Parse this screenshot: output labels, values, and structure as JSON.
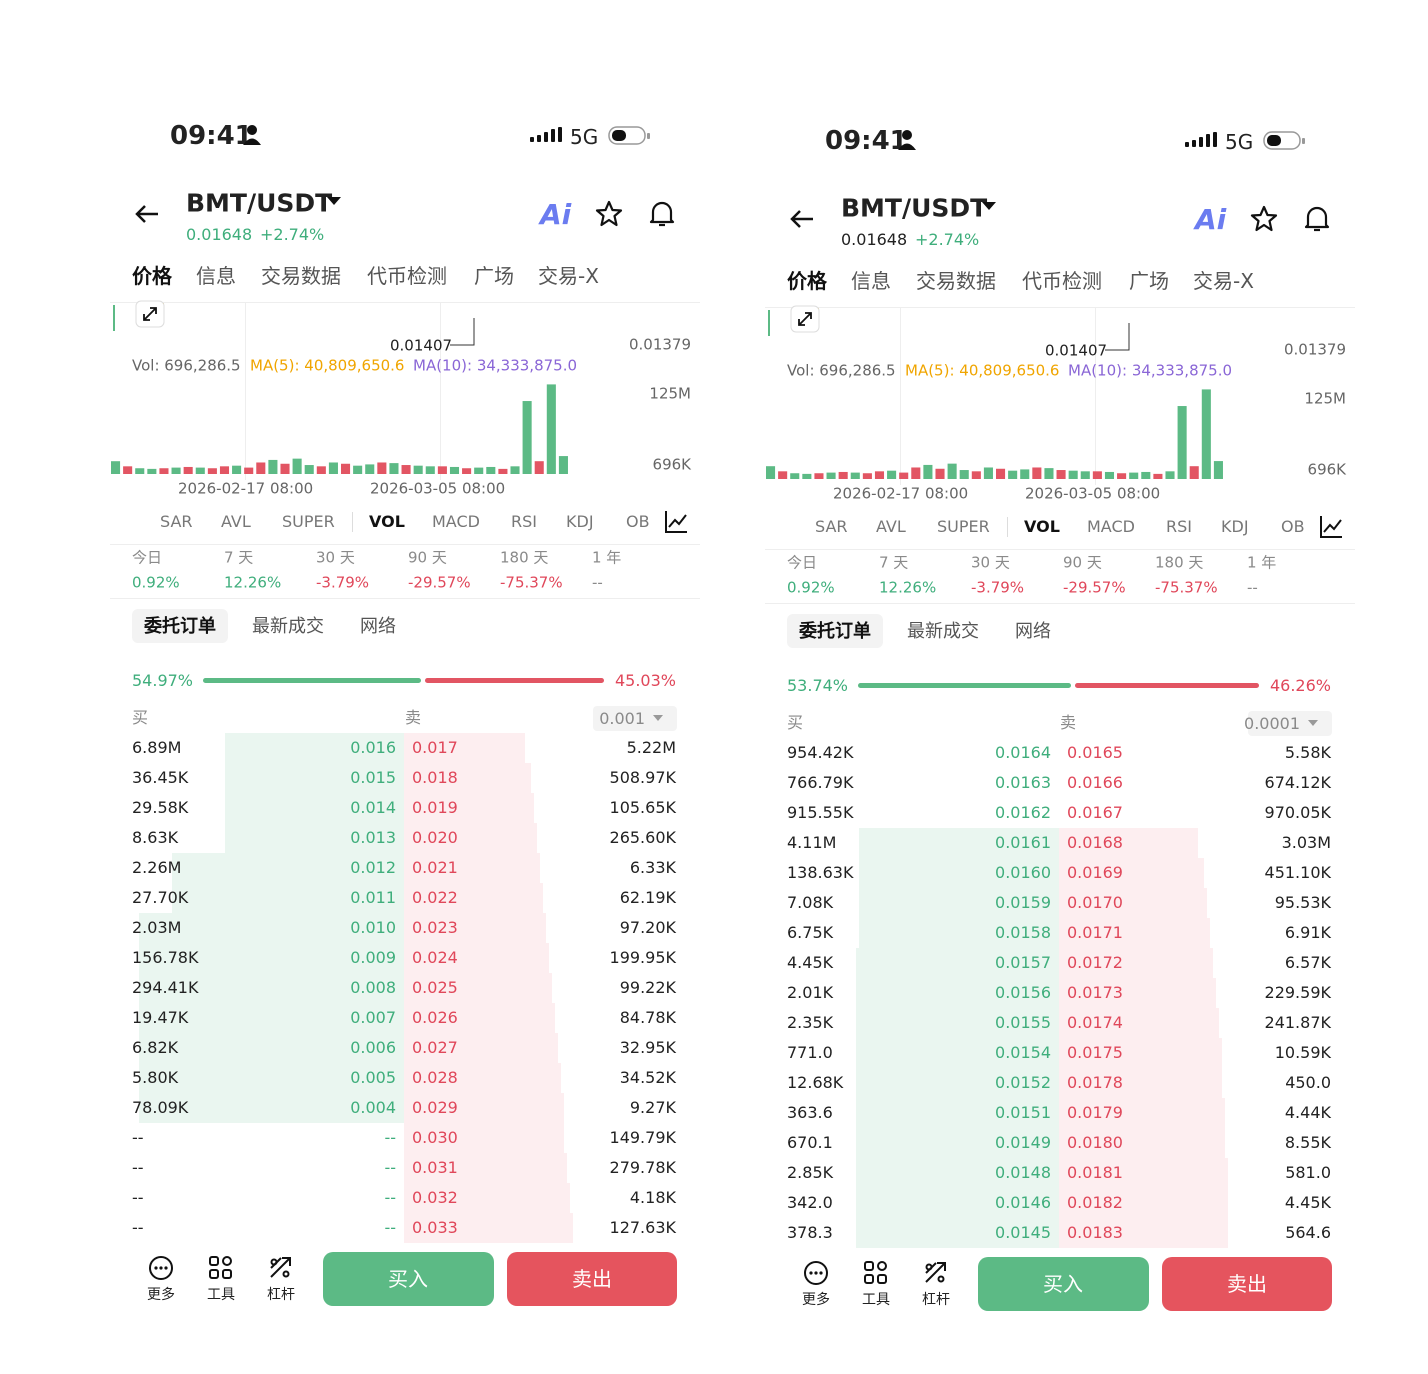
{
  "screens": [
    {
      "status": {
        "time": "09:41",
        "network": "5G"
      },
      "header": {
        "pair": "BMT/USDT",
        "price": "0.01648",
        "change": "+2.74%",
        "ai": "Ai",
        "price_color": "#3fae7c"
      },
      "tabs": [
        "价格",
        "信息",
        "交易数据",
        "代币检测",
        "广场",
        "交易-X"
      ],
      "chart": {
        "price_labels": [
          "0.01407",
          "0.01379"
        ],
        "vol": "Vol: 696,286.5",
        "ma5": "MA(5): 40,809,650.6",
        "ma10": "MA(10): 34,333,875.0",
        "vol_ticks": [
          {
            "value": 125,
            "label": "125M"
          },
          {
            "value": 0.696,
            "label": "696K"
          }
        ],
        "volume": [
          20,
          12,
          9,
          8,
          9,
          10,
          11,
          10,
          9,
          12,
          13,
          10,
          18,
          22,
          16,
          24,
          14,
          12,
          18,
          16,
          13,
          15,
          18,
          17,
          14,
          13,
          12,
          12,
          11,
          9,
          10,
          11,
          8,
          12,
          114,
          20,
          140,
          28
        ],
        "volume_colors": [
          "#5cba85",
          "#e25563",
          "#5cba85",
          "#5cba85",
          "#e25563",
          "#5cba85",
          "#e25563",
          "#5cba85",
          "#e25563",
          "#e25563",
          "#5cba85",
          "#e25563",
          "#e25563",
          "#5cba85",
          "#e25563",
          "#5cba85",
          "#5cba85",
          "#e25563",
          "#5cba85",
          "#e25563",
          "#5cba85",
          "#5cba85",
          "#e25563",
          "#5cba85",
          "#e25563",
          "#5cba85",
          "#5cba85",
          "#e25563",
          "#5cba85",
          "#e25563",
          "#5cba85",
          "#5cba85",
          "#e25563",
          "#5cba85",
          "#5cba85",
          "#e25563",
          "#5cba85",
          "#5cba85"
        ],
        "dates": [
          "2026-02-17 08:00",
          "2026-03-05 08:00"
        ]
      },
      "indicators": [
        "SAR",
        "AVL",
        "SUPER",
        "VOL",
        "MACD",
        "RSI",
        "KDJ",
        "OB"
      ],
      "periods": [
        {
          "label": "今日",
          "value": "0.92%"
        },
        {
          "label": "7 天",
          "value": "12.26%"
        },
        {
          "label": "30 天",
          "value": "-3.79%"
        },
        {
          "label": "90 天",
          "value": "-29.57%"
        },
        {
          "label": "180 天",
          "value": "-75.37%"
        },
        {
          "label": "1 年",
          "value": "--"
        }
      ],
      "order_tabs": [
        "委托订单",
        "最新成交",
        "网络"
      ],
      "order_book": {
        "buy_ratio": {
          "value": 54.97,
          "label": "54.97%"
        },
        "sell_ratio": {
          "value": 45.03,
          "label": "45.03%"
        },
        "buy_header": "买",
        "sell_header": "卖",
        "precision": "0.001",
        "rows": [
          [
            "6.89M",
            "0.016",
            "0.017",
            "5.22M"
          ],
          [
            "36.45K",
            "0.015",
            "0.018",
            "508.97K"
          ],
          [
            "29.58K",
            "0.014",
            "0.019",
            "105.65K"
          ],
          [
            "8.63K",
            "0.013",
            "0.020",
            "265.60K"
          ],
          [
            "2.26M",
            "0.012",
            "0.021",
            "6.33K"
          ],
          [
            "27.70K",
            "0.011",
            "0.022",
            "62.19K"
          ],
          [
            "2.03M",
            "0.010",
            "0.023",
            "97.20K"
          ],
          [
            "156.78K",
            "0.009",
            "0.024",
            "199.95K"
          ],
          [
            "294.41K",
            "0.008",
            "0.025",
            "99.22K"
          ],
          [
            "19.47K",
            "0.007",
            "0.026",
            "84.78K"
          ],
          [
            "6.82K",
            "0.006",
            "0.027",
            "32.95K"
          ],
          [
            "5.80K",
            "0.005",
            "0.028",
            "34.52K"
          ],
          [
            "78.09K",
            "0.004",
            "0.029",
            "9.27K"
          ],
          [
            "--",
            "--",
            "0.030",
            "149.79K"
          ],
          [
            "--",
            "--",
            "0.031",
            "279.78K"
          ],
          [
            "--",
            "--",
            "0.032",
            "4.18K"
          ],
          [
            "--",
            "--",
            "0.033",
            "127.63K"
          ]
        ],
        "buy_depth": [
          61,
          61,
          61,
          61,
          79,
          79,
          90,
          90,
          90,
          90,
          90,
          90,
          90,
          0,
          0,
          0,
          0
        ],
        "sell_depth": [
          41,
          43,
          44,
          45,
          46,
          47,
          48,
          49,
          50,
          51,
          52,
          53,
          54,
          54,
          55,
          56,
          57
        ]
      },
      "footer": {
        "tools": [
          "更多",
          "工具",
          "杠杆"
        ],
        "buy": "买入",
        "sell": "卖出"
      }
    },
    {
      "status": {
        "time": "09:41",
        "network": "5G"
      },
      "header": {
        "pair": "BMT/USDT",
        "price": "0.01648",
        "change": "+2.74%",
        "ai": "Ai",
        "price_color": "#222222"
      },
      "tabs": [
        "价格",
        "信息",
        "交易数据",
        "代币检测",
        "广场",
        "交易-X"
      ],
      "chart": {
        "price_labels": [
          "0.01407",
          "0.01379"
        ],
        "vol": "Vol: 696,286.5",
        "ma5": "MA(5): 40,809,650.6",
        "ma10": "MA(10): 34,333,875.0",
        "vol_ticks": [
          {
            "value": 125,
            "label": "125M"
          },
          {
            "value": 0.696,
            "label": "696K"
          }
        ],
        "volume": [
          20,
          12,
          9,
          8,
          9,
          10,
          11,
          10,
          9,
          12,
          13,
          10,
          18,
          22,
          16,
          24,
          14,
          12,
          18,
          16,
          13,
          15,
          18,
          17,
          14,
          13,
          12,
          12,
          11,
          9,
          10,
          11,
          8,
          12,
          114,
          20,
          140,
          28
        ],
        "volume_colors": [
          "#5cba85",
          "#e25563",
          "#5cba85",
          "#5cba85",
          "#e25563",
          "#5cba85",
          "#e25563",
          "#5cba85",
          "#e25563",
          "#e25563",
          "#5cba85",
          "#e25563",
          "#e25563",
          "#5cba85",
          "#e25563",
          "#5cba85",
          "#5cba85",
          "#e25563",
          "#5cba85",
          "#e25563",
          "#5cba85",
          "#5cba85",
          "#e25563",
          "#5cba85",
          "#e25563",
          "#5cba85",
          "#5cba85",
          "#e25563",
          "#5cba85",
          "#e25563",
          "#5cba85",
          "#5cba85",
          "#e25563",
          "#5cba85",
          "#5cba85",
          "#e25563",
          "#5cba85",
          "#5cba85"
        ],
        "dates": [
          "2026-02-17 08:00",
          "2026-03-05 08:00"
        ]
      },
      "indicators": [
        "SAR",
        "AVL",
        "SUPER",
        "VOL",
        "MACD",
        "RSI",
        "KDJ",
        "OB"
      ],
      "periods": [
        {
          "label": "今日",
          "value": "0.92%"
        },
        {
          "label": "7 天",
          "value": "12.26%"
        },
        {
          "label": "30 天",
          "value": "-3.79%"
        },
        {
          "label": "90 天",
          "value": "-29.57%"
        },
        {
          "label": "180 天",
          "value": "-75.37%"
        },
        {
          "label": "1 年",
          "value": "--"
        }
      ],
      "order_tabs": [
        "委托订单",
        "最新成交",
        "网络"
      ],
      "order_book": {
        "buy_ratio": {
          "value": 53.74,
          "label": "53.74%"
        },
        "sell_ratio": {
          "value": 46.26,
          "label": "46.26%"
        },
        "buy_header": "买",
        "sell_header": "卖",
        "precision": "0.0001",
        "rows": [
          [
            "954.42K",
            "0.0164",
            "0.0165",
            "5.58K"
          ],
          [
            "766.79K",
            "0.0163",
            "0.0166",
            "674.12K"
          ],
          [
            "915.55K",
            "0.0162",
            "0.0167",
            "970.05K"
          ],
          [
            "4.11M",
            "0.0161",
            "0.0168",
            "3.03M"
          ],
          [
            "138.63K",
            "0.0160",
            "0.0169",
            "451.10K"
          ],
          [
            "7.08K",
            "0.0159",
            "0.0170",
            "95.53K"
          ],
          [
            "6.75K",
            "0.0158",
            "0.0171",
            "6.91K"
          ],
          [
            "4.45K",
            "0.0157",
            "0.0172",
            "6.57K"
          ],
          [
            "2.01K",
            "0.0156",
            "0.0173",
            "229.59K"
          ],
          [
            "2.35K",
            "0.0155",
            "0.0174",
            "241.87K"
          ],
          [
            "771.0",
            "0.0154",
            "0.0175",
            "10.59K"
          ],
          [
            "12.68K",
            "0.0152",
            "0.0178",
            "450.0"
          ],
          [
            "363.6",
            "0.0151",
            "0.0179",
            "4.44K"
          ],
          [
            "670.1",
            "0.0149",
            "0.0180",
            "8.55K"
          ],
          [
            "2.85K",
            "0.0148",
            "0.0181",
            "581.0"
          ],
          [
            "342.0",
            "0.0146",
            "0.0182",
            "4.45K"
          ],
          [
            "378.3",
            "0.0145",
            "0.0183",
            "564.6"
          ]
        ],
        "buy_depth": [
          0,
          0,
          0,
          68,
          68,
          68,
          68,
          69,
          69,
          69,
          69,
          69,
          69,
          69,
          69,
          69,
          69
        ],
        "sell_depth": [
          0,
          0,
          0,
          47,
          49,
          50,
          51,
          52,
          53,
          54,
          55,
          55,
          56,
          56,
          57,
          57,
          57
        ]
      },
      "footer": {
        "tools": [
          "更多",
          "工具",
          "杠杆"
        ],
        "buy": "买入",
        "sell": "卖出"
      }
    }
  ]
}
